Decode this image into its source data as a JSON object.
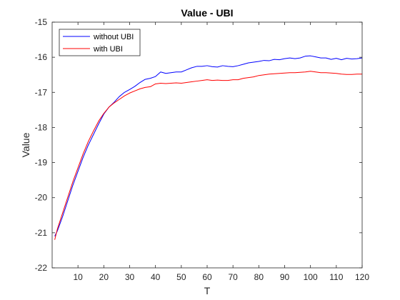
{
  "chart_data": {
    "type": "line",
    "title": "Value - UBI",
    "xlabel": "T",
    "ylabel": "Value",
    "xlim": [
      0,
      120
    ],
    "ylim": [
      -22,
      -15
    ],
    "xticks": [
      10,
      20,
      30,
      40,
      50,
      60,
      70,
      80,
      90,
      100,
      110,
      120
    ],
    "yticks": [
      -15,
      -16,
      -17,
      -18,
      -19,
      -20,
      -21,
      -22
    ],
    "grid": false,
    "legend_position": "top-left",
    "series": [
      {
        "name": "without UBI",
        "color": "#0000ff",
        "x": [
          1,
          2,
          4,
          6,
          8,
          10,
          12,
          14,
          16,
          18,
          20,
          22,
          24,
          26,
          28,
          30,
          32,
          34,
          36,
          38,
          40,
          42,
          44,
          46,
          48,
          50,
          52,
          54,
          56,
          58,
          60,
          62,
          64,
          66,
          68,
          70,
          72,
          74,
          76,
          78,
          80,
          82,
          84,
          86,
          88,
          90,
          92,
          94,
          96,
          98,
          100,
          102,
          104,
          106,
          108,
          110,
          112,
          114,
          116,
          118,
          120
        ],
        "values": [
          -21.1,
          -20.95,
          -20.55,
          -20.1,
          -19.65,
          -19.25,
          -18.85,
          -18.5,
          -18.2,
          -17.9,
          -17.62,
          -17.42,
          -17.28,
          -17.12,
          -17.0,
          -16.92,
          -16.83,
          -16.72,
          -16.63,
          -16.6,
          -16.55,
          -16.42,
          -16.46,
          -16.44,
          -16.42,
          -16.42,
          -16.36,
          -16.3,
          -16.26,
          -16.26,
          -16.24,
          -16.27,
          -16.28,
          -16.24,
          -16.26,
          -16.27,
          -16.24,
          -16.2,
          -16.16,
          -16.14,
          -16.12,
          -16.09,
          -16.1,
          -16.06,
          -16.07,
          -16.04,
          -16.02,
          -16.04,
          -16.02,
          -15.97,
          -15.96,
          -15.99,
          -16.02,
          -16.02,
          -16.06,
          -16.03,
          -16.07,
          -16.03,
          -16.05,
          -16.04,
          -16.02
        ]
      },
      {
        "name": "with UBI",
        "color": "#ff0000",
        "x": [
          1,
          2,
          4,
          6,
          8,
          10,
          12,
          14,
          16,
          18,
          20,
          22,
          24,
          26,
          28,
          30,
          32,
          34,
          36,
          38,
          40,
          42,
          44,
          46,
          48,
          50,
          52,
          54,
          56,
          58,
          60,
          62,
          64,
          66,
          68,
          70,
          72,
          74,
          76,
          78,
          80,
          82,
          84,
          86,
          88,
          90,
          92,
          94,
          96,
          98,
          100,
          102,
          104,
          106,
          108,
          110,
          112,
          114,
          116,
          118,
          120
        ],
        "values": [
          -21.2,
          -20.9,
          -20.45,
          -20.0,
          -19.55,
          -19.15,
          -18.75,
          -18.4,
          -18.1,
          -17.82,
          -17.6,
          -17.42,
          -17.3,
          -17.2,
          -17.1,
          -17.02,
          -16.96,
          -16.9,
          -16.86,
          -16.84,
          -16.76,
          -16.74,
          -16.75,
          -16.74,
          -16.73,
          -16.74,
          -16.72,
          -16.7,
          -16.68,
          -16.66,
          -16.64,
          -16.66,
          -16.65,
          -16.66,
          -16.66,
          -16.64,
          -16.64,
          -16.6,
          -16.58,
          -16.56,
          -16.52,
          -16.5,
          -16.48,
          -16.47,
          -16.46,
          -16.45,
          -16.44,
          -16.44,
          -16.43,
          -16.42,
          -16.4,
          -16.42,
          -16.44,
          -16.44,
          -16.45,
          -16.46,
          -16.48,
          -16.49,
          -16.49,
          -16.48,
          -16.48
        ]
      }
    ]
  }
}
